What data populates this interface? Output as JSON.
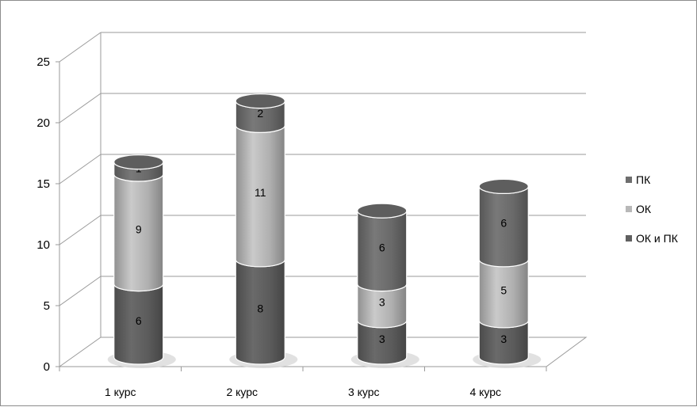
{
  "chart_data": {
    "type": "bar",
    "stacked": true,
    "style": "3d-cylinder",
    "categories": [
      "1 курс",
      "2 курс",
      "3 курс",
      "4 курс"
    ],
    "series": [
      {
        "name": "ОК и ПК",
        "values": [
          6,
          8,
          3,
          3
        ],
        "color": "#606060"
      },
      {
        "name": "ОК",
        "values": [
          9,
          11,
          3,
          5
        ],
        "color": "#b8b8b8"
      },
      {
        "name": "ПК",
        "values": [
          1,
          2,
          6,
          6
        ],
        "color": "#6e6e6e"
      }
    ],
    "yticks": [
      0,
      5,
      10,
      15,
      20,
      25
    ],
    "ylim": [
      0,
      25
    ],
    "grid": true,
    "legend_position": "right",
    "legend_order": [
      "ПК",
      "ОК",
      "ОК и ПК"
    ],
    "title": "",
    "xlabel": "",
    "ylabel": ""
  }
}
